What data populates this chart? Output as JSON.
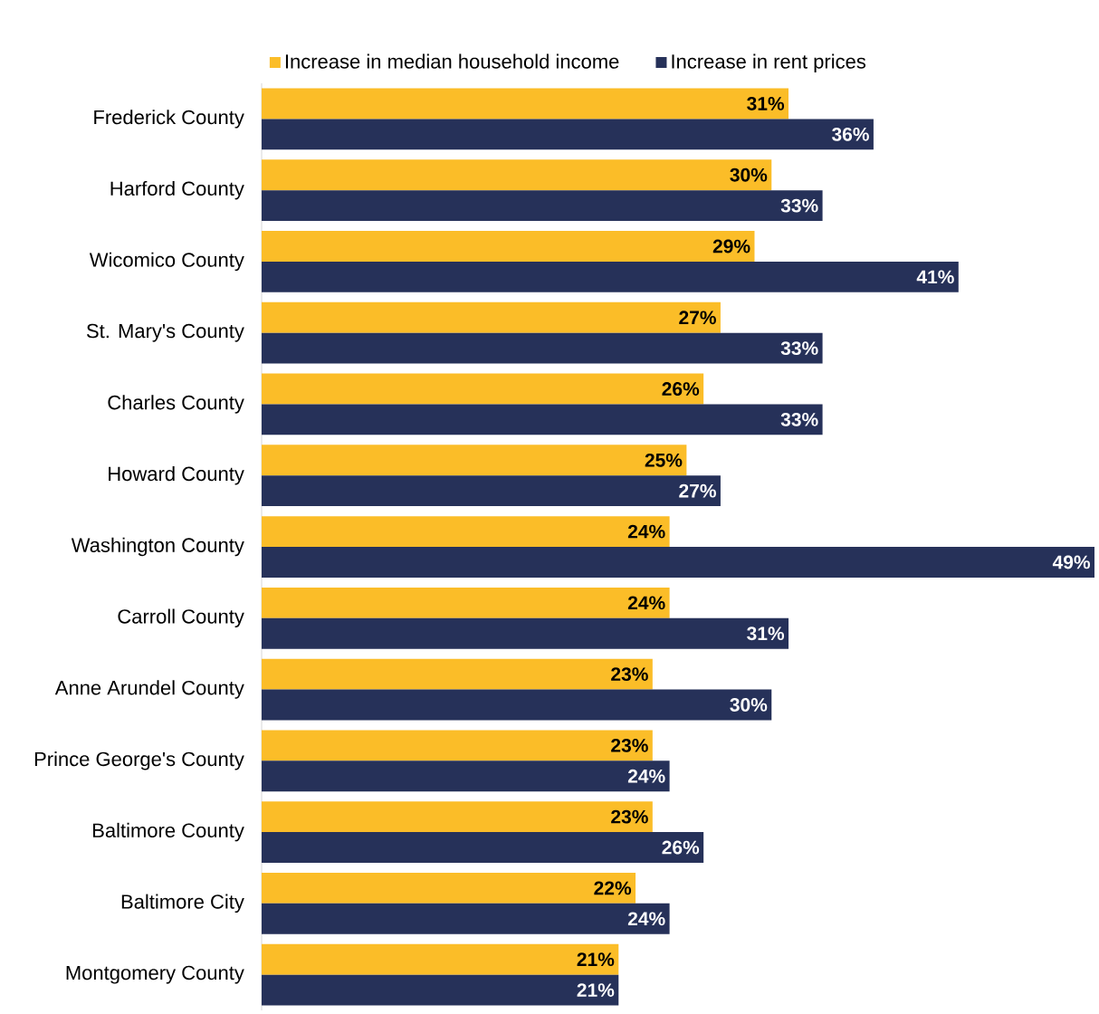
{
  "chart_data": {
    "type": "bar",
    "orientation": "horizontal",
    "categories": [
      "Frederick County",
      "Harford County",
      "Wicomico County",
      "St. Mary's County",
      "Charles County",
      "Howard County",
      "Washington County",
      "Carroll County",
      "Anne Arundel County",
      "Prince George's County",
      "Baltimore County",
      "Baltimore City",
      "Montgomery County"
    ],
    "series": [
      {
        "name": "Increase in median household income",
        "color": "#fbbd28",
        "values": [
          31,
          30,
          29,
          27,
          26,
          25,
          24,
          24,
          23,
          23,
          23,
          22,
          21
        ],
        "value_labels": [
          "31%",
          "30%",
          "29%",
          "27%",
          "26%",
          "25%",
          "24%",
          "24%",
          "23%",
          "23%",
          "23%",
          "22%",
          "21%"
        ]
      },
      {
        "name": "Increase in rent prices",
        "color": "#263159",
        "values": [
          36,
          33,
          41,
          33,
          33,
          27,
          49,
          31,
          30,
          24,
          26,
          24,
          21
        ],
        "value_labels": [
          "36%",
          "33%",
          "41%",
          "33%",
          "33%",
          "27%",
          "49%",
          "31%",
          "30%",
          "24%",
          "26%",
          "24%",
          "21%"
        ]
      }
    ],
    "xlim": [
      0,
      49
    ],
    "tick_labels": "y",
    "legend": "top"
  }
}
